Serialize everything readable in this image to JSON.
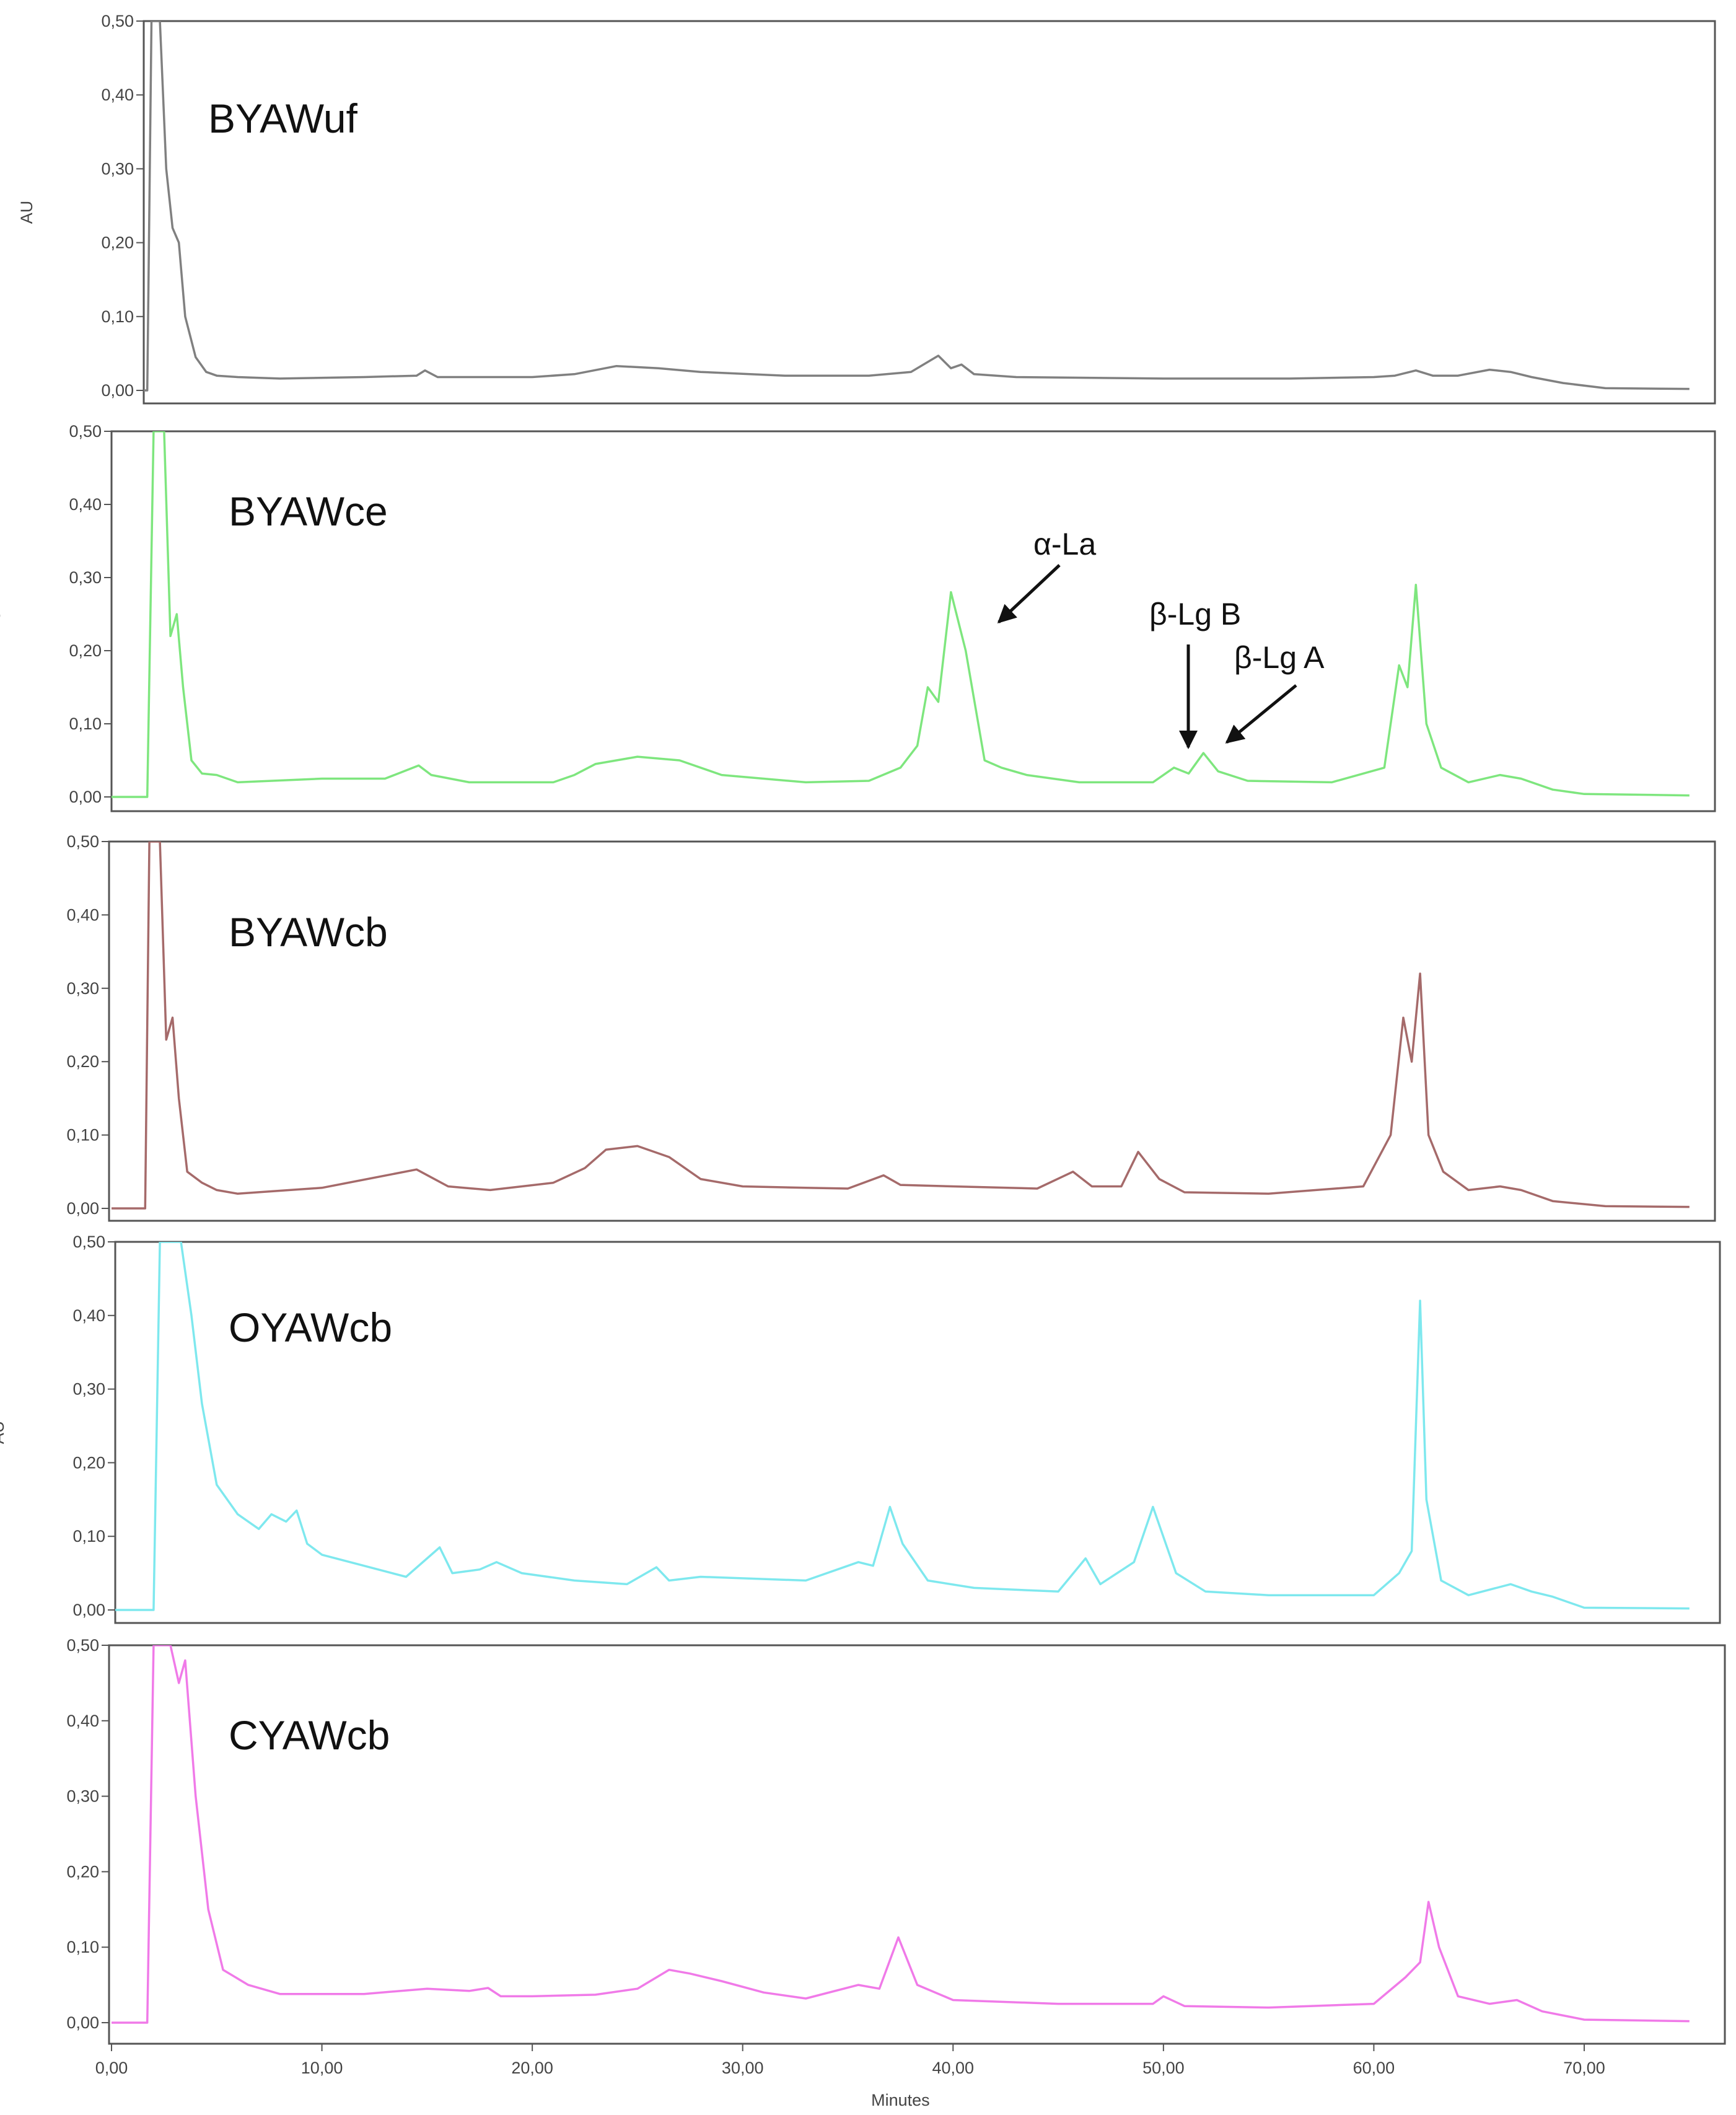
{
  "chart_data": {
    "type": "line",
    "xlabel": "Minutes",
    "ylabel": "AU",
    "xlim": [
      0,
      75
    ],
    "ylim": [
      0,
      0.5
    ],
    "xticks": [
      0,
      10,
      20,
      30,
      40,
      50,
      60,
      70
    ],
    "xtick_labels": [
      "0,00",
      "10,00",
      "20,00",
      "30,00",
      "40,00",
      "50,00",
      "60,00",
      "70,00"
    ],
    "yticks": [
      0,
      0.1,
      0.2,
      0.3,
      0.4,
      0.5
    ],
    "ytick_labels": [
      "0,00",
      "0,10",
      "0,20",
      "0,30",
      "0,40",
      "0,50"
    ],
    "grid": false,
    "panels": [
      {
        "label": "BYAWuf",
        "color": "#808080",
        "x": [
          0,
          1.7,
          1.9,
          2.1,
          2.3,
          2.6,
          2.9,
          3.2,
          3.5,
          4.0,
          4.5,
          5.0,
          6.0,
          8.0,
          12.0,
          14.5,
          14.9,
          15.5,
          20.0,
          22.0,
          24.0,
          26.0,
          28.0,
          32.0,
          36.0,
          38.0,
          39.3,
          39.9,
          40.4,
          41.0,
          43.0,
          50.0,
          56.0,
          60.0,
          61.0,
          62.0,
          62.8,
          64.0,
          65.5,
          66.5,
          67.5,
          69.0,
          71.0,
          75.0
        ],
        "y": [
          0.0,
          0.0,
          0.5,
          0.5,
          0.5,
          0.3,
          0.22,
          0.2,
          0.1,
          0.045,
          0.025,
          0.02,
          0.018,
          0.016,
          0.018,
          0.02,
          0.027,
          0.018,
          0.018,
          0.022,
          0.033,
          0.03,
          0.025,
          0.02,
          0.02,
          0.025,
          0.047,
          0.03,
          0.035,
          0.022,
          0.018,
          0.016,
          0.016,
          0.018,
          0.02,
          0.027,
          0.02,
          0.02,
          0.028,
          0.025,
          0.018,
          0.01,
          0.003,
          0.002
        ]
      },
      {
        "label": "BYAWce",
        "color": "#7ee67e",
        "x": [
          0,
          1.7,
          2.0,
          2.5,
          2.8,
          3.1,
          3.4,
          3.8,
          4.3,
          5.0,
          6.0,
          10.0,
          13.0,
          14.6,
          15.2,
          17.0,
          21.0,
          22.0,
          23.0,
          25.0,
          27.0,
          29.0,
          33.0,
          36.0,
          37.5,
          38.3,
          38.8,
          39.3,
          39.9,
          40.6,
          41.5,
          42.3,
          43.5,
          46.0,
          49.5,
          50.5,
          51.2,
          51.9,
          52.6,
          54.0,
          58.0,
          60.5,
          61.2,
          61.6,
          62.0,
          62.5,
          63.2,
          64.5,
          66.0,
          67.0,
          68.5,
          70.0,
          75.0
        ],
        "y": [
          0.0,
          0.0,
          0.5,
          0.5,
          0.22,
          0.25,
          0.15,
          0.05,
          0.032,
          0.03,
          0.02,
          0.025,
          0.025,
          0.043,
          0.03,
          0.02,
          0.02,
          0.03,
          0.045,
          0.055,
          0.05,
          0.03,
          0.02,
          0.022,
          0.04,
          0.07,
          0.15,
          0.13,
          0.28,
          0.2,
          0.05,
          0.04,
          0.03,
          0.02,
          0.02,
          0.04,
          0.032,
          0.06,
          0.035,
          0.022,
          0.02,
          0.04,
          0.18,
          0.15,
          0.29,
          0.1,
          0.04,
          0.02,
          0.03,
          0.025,
          0.01,
          0.004,
          0.002
        ]
      },
      {
        "label": "BYAWcb",
        "color": "#a56a6a",
        "x": [
          0,
          1.6,
          1.8,
          2.3,
          2.6,
          2.9,
          3.2,
          3.6,
          4.3,
          5.0,
          6.0,
          10.0,
          14.5,
          16.0,
          18.0,
          21.0,
          22.5,
          23.5,
          25.0,
          26.5,
          28.0,
          30.0,
          33.0,
          35.0,
          36.7,
          37.5,
          40.0,
          44.0,
          45.7,
          46.6,
          48.0,
          48.8,
          49.8,
          51.0,
          55.0,
          59.5,
          60.8,
          61.4,
          61.8,
          62.2,
          62.6,
          63.3,
          64.5,
          66.0,
          67.0,
          68.5,
          71.0,
          75.0
        ],
        "y": [
          0.0,
          0.0,
          0.5,
          0.5,
          0.23,
          0.26,
          0.15,
          0.05,
          0.035,
          0.025,
          0.02,
          0.028,
          0.053,
          0.03,
          0.025,
          0.035,
          0.055,
          0.08,
          0.085,
          0.07,
          0.04,
          0.03,
          0.028,
          0.027,
          0.045,
          0.032,
          0.03,
          0.027,
          0.05,
          0.03,
          0.03,
          0.077,
          0.04,
          0.022,
          0.02,
          0.03,
          0.1,
          0.26,
          0.2,
          0.32,
          0.1,
          0.05,
          0.025,
          0.03,
          0.025,
          0.01,
          0.003,
          0.002
        ]
      },
      {
        "label": "OYAWcb",
        "color": "#7ee8ee",
        "x": [
          0,
          2.0,
          2.3,
          2.6,
          3.3,
          3.8,
          4.3,
          5.0,
          6.0,
          7.0,
          7.6,
          8.3,
          8.8,
          9.3,
          10.0,
          12.0,
          14.0,
          15.6,
          16.2,
          17.5,
          18.3,
          19.5,
          22.0,
          24.5,
          25.9,
          26.5,
          28.0,
          33.0,
          35.5,
          36.2,
          37.0,
          37.6,
          38.8,
          41.0,
          45.0,
          46.3,
          47.0,
          48.6,
          49.5,
          50.6,
          52.0,
          55.0,
          60.0,
          61.2,
          61.8,
          62.2,
          62.5,
          63.2,
          64.5,
          66.5,
          67.5,
          68.5,
          70.0,
          75.0
        ],
        "y": [
          0.0,
          0.0,
          0.5,
          0.5,
          0.5,
          0.4,
          0.28,
          0.17,
          0.13,
          0.11,
          0.13,
          0.12,
          0.135,
          0.09,
          0.075,
          0.06,
          0.045,
          0.085,
          0.05,
          0.055,
          0.065,
          0.05,
          0.04,
          0.035,
          0.058,
          0.04,
          0.045,
          0.04,
          0.065,
          0.06,
          0.14,
          0.09,
          0.04,
          0.03,
          0.025,
          0.07,
          0.035,
          0.065,
          0.14,
          0.05,
          0.025,
          0.02,
          0.02,
          0.05,
          0.08,
          0.42,
          0.15,
          0.04,
          0.02,
          0.035,
          0.025,
          0.018,
          0.003,
          0.002
        ]
      },
      {
        "label": "CYAWcb",
        "color": "#f07ae8",
        "x": [
          0,
          1.7,
          2.0,
          2.8,
          3.2,
          3.5,
          4.0,
          4.6,
          5.3,
          6.5,
          8.0,
          12.0,
          15.0,
          17.0,
          17.9,
          18.5,
          20.0,
          23.0,
          25.0,
          26.5,
          27.5,
          29.0,
          31.0,
          33.0,
          35.5,
          36.5,
          37.4,
          38.3,
          40.0,
          45.0,
          49.5,
          50.0,
          51.0,
          55.0,
          60.0,
          61.5,
          62.2,
          62.6,
          63.1,
          64.0,
          65.5,
          66.8,
          68.0,
          70.0,
          75.0
        ],
        "y": [
          0.0,
          0.0,
          0.5,
          0.5,
          0.45,
          0.48,
          0.3,
          0.15,
          0.07,
          0.05,
          0.038,
          0.038,
          0.045,
          0.042,
          0.046,
          0.035,
          0.035,
          0.037,
          0.045,
          0.07,
          0.065,
          0.055,
          0.04,
          0.032,
          0.05,
          0.045,
          0.113,
          0.05,
          0.03,
          0.025,
          0.025,
          0.035,
          0.022,
          0.02,
          0.025,
          0.06,
          0.08,
          0.16,
          0.1,
          0.035,
          0.025,
          0.03,
          0.015,
          0.004,
          0.002
        ]
      }
    ],
    "annotations": [
      {
        "panel": 1,
        "text": "α-La",
        "x": 40.3,
        "y": 0.25
      },
      {
        "panel": 1,
        "text": "β-Lg B",
        "x": 50.3,
        "y": 0.065
      },
      {
        "panel": 1,
        "text": "β-Lg A",
        "x": 52.1,
        "y": 0.075
      }
    ]
  }
}
